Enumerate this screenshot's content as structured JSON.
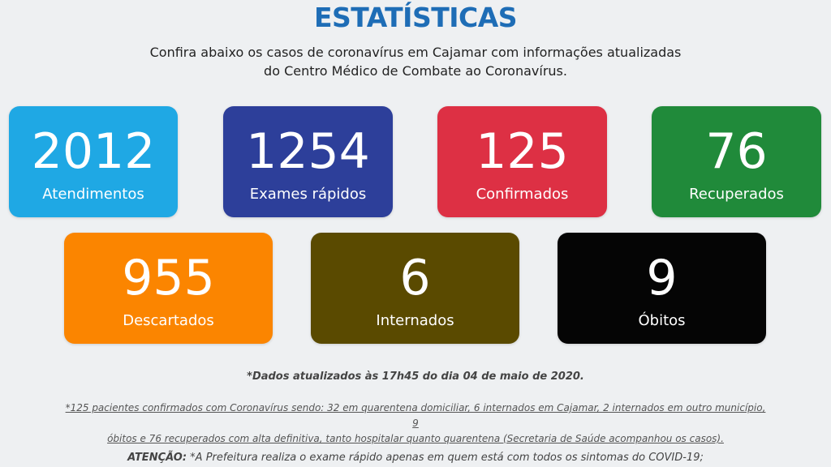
{
  "header": {
    "title": "ESTATÍSTICAS",
    "subtitle_line1": "Confira abaixo os casos de coronavírus em Cajamar com informações atualizadas",
    "subtitle_line2": "do Centro Médico de Combate ao Coronavírus."
  },
  "stats": [
    {
      "value": "2012",
      "label": "Atendimentos",
      "color": "#1fa8e4"
    },
    {
      "value": "1254",
      "label": "Exames rápidos",
      "color": "#2d3f9a"
    },
    {
      "value": "125",
      "label": "Confirmados",
      "color": "#dd3044"
    },
    {
      "value": "76",
      "label": "Recuperados",
      "color": "#208a3a"
    },
    {
      "value": "955",
      "label": "Descartados",
      "color": "#fb8500"
    },
    {
      "value": "6",
      "label": "Internados",
      "color": "#5a4a00"
    },
    {
      "value": "9",
      "label": "Óbitos",
      "color": "#050505"
    }
  ],
  "notes": {
    "date": "*Dados atualizados às 17h45 do dia 04 de maio de 2020.",
    "detail_line1": "*125 pacientes confirmados com Coronavírus sendo: 32 em quarentena domiciliar, 6 internados em Cajamar, 2 internados em outro município, 9",
    "detail_line2": "óbitos e 76 recuperados com alta definitiva, tanto hospitalar quanto quarentena (Secretaria de Saúde acompanhou os casos).",
    "attention_label": "ATENÇÃO:",
    "attention_text": "*A Prefeitura realiza o exame rápido apenas em quem está com todos os sintomas do COVID-19;"
  }
}
